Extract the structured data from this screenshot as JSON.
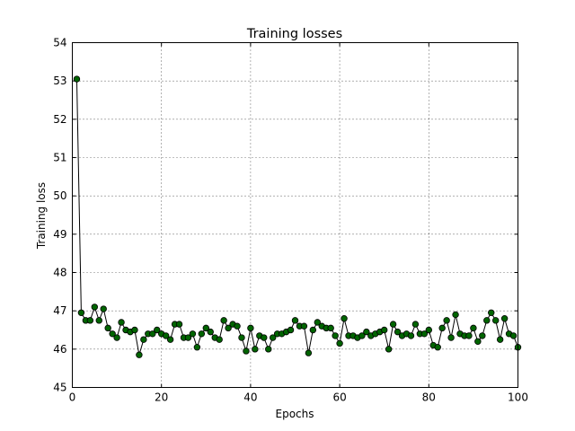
{
  "chart_data": {
    "type": "line",
    "title": "Training losses",
    "xlabel": "Epochs",
    "ylabel": "Training loss",
    "xlim": [
      0,
      100
    ],
    "ylim": [
      45,
      54
    ],
    "xticks": [
      0,
      20,
      40,
      60,
      80,
      100
    ],
    "yticks": [
      45,
      46,
      47,
      48,
      49,
      50,
      51,
      52,
      53,
      54
    ],
    "grid": true,
    "line_color": "#000000",
    "marker_color": "#006400",
    "series": [
      {
        "x": [
          1,
          2,
          3,
          4,
          5,
          6,
          7,
          8,
          9,
          10,
          11,
          12,
          13,
          14,
          15,
          16,
          17,
          18,
          19,
          20,
          21,
          22,
          23,
          24,
          25,
          26,
          27,
          28,
          29,
          30,
          31,
          32,
          33,
          34,
          35,
          36,
          37,
          38,
          39,
          40,
          41,
          42,
          43,
          44,
          45,
          46,
          47,
          48,
          49,
          50,
          51,
          52,
          53,
          54,
          55,
          56,
          57,
          58,
          59,
          60,
          61,
          62,
          63,
          64,
          65,
          66,
          67,
          68,
          69,
          70,
          71,
          72,
          73,
          74,
          75,
          76,
          77,
          78,
          79,
          80,
          81,
          82,
          83,
          84,
          85,
          86,
          87,
          88,
          89,
          90,
          91,
          92,
          93,
          94,
          95,
          96,
          97,
          98,
          99,
          100
        ],
        "values": [
          53.05,
          46.95,
          46.75,
          46.75,
          47.1,
          46.75,
          47.05,
          46.55,
          46.4,
          46.3,
          46.7,
          46.5,
          46.45,
          46.5,
          45.85,
          46.25,
          46.4,
          46.4,
          46.5,
          46.4,
          46.35,
          46.25,
          46.65,
          46.65,
          46.3,
          46.3,
          46.4,
          46.05,
          46.4,
          46.55,
          46.45,
          46.3,
          46.25,
          46.75,
          46.55,
          46.65,
          46.6,
          46.3,
          45.95,
          46.55,
          46.0,
          46.35,
          46.3,
          46.0,
          46.3,
          46.4,
          46.4,
          46.45,
          46.5,
          46.75,
          46.6,
          46.6,
          45.9,
          46.5,
          46.7,
          46.6,
          46.55,
          46.55,
          46.35,
          46.15,
          46.8,
          46.35,
          46.35,
          46.3,
          46.35,
          46.45,
          46.35,
          46.4,
          46.45,
          46.5,
          46.0,
          46.65,
          46.45,
          46.35,
          46.4,
          46.35,
          46.65,
          46.4,
          46.4,
          46.5,
          46.1,
          46.05,
          46.55,
          46.75,
          46.3,
          46.9,
          46.4,
          46.35,
          46.35,
          46.55,
          46.2,
          46.35,
          46.75,
          46.95,
          46.75,
          46.25,
          46.8,
          46.4,
          46.35,
          46.05
        ]
      }
    ]
  }
}
